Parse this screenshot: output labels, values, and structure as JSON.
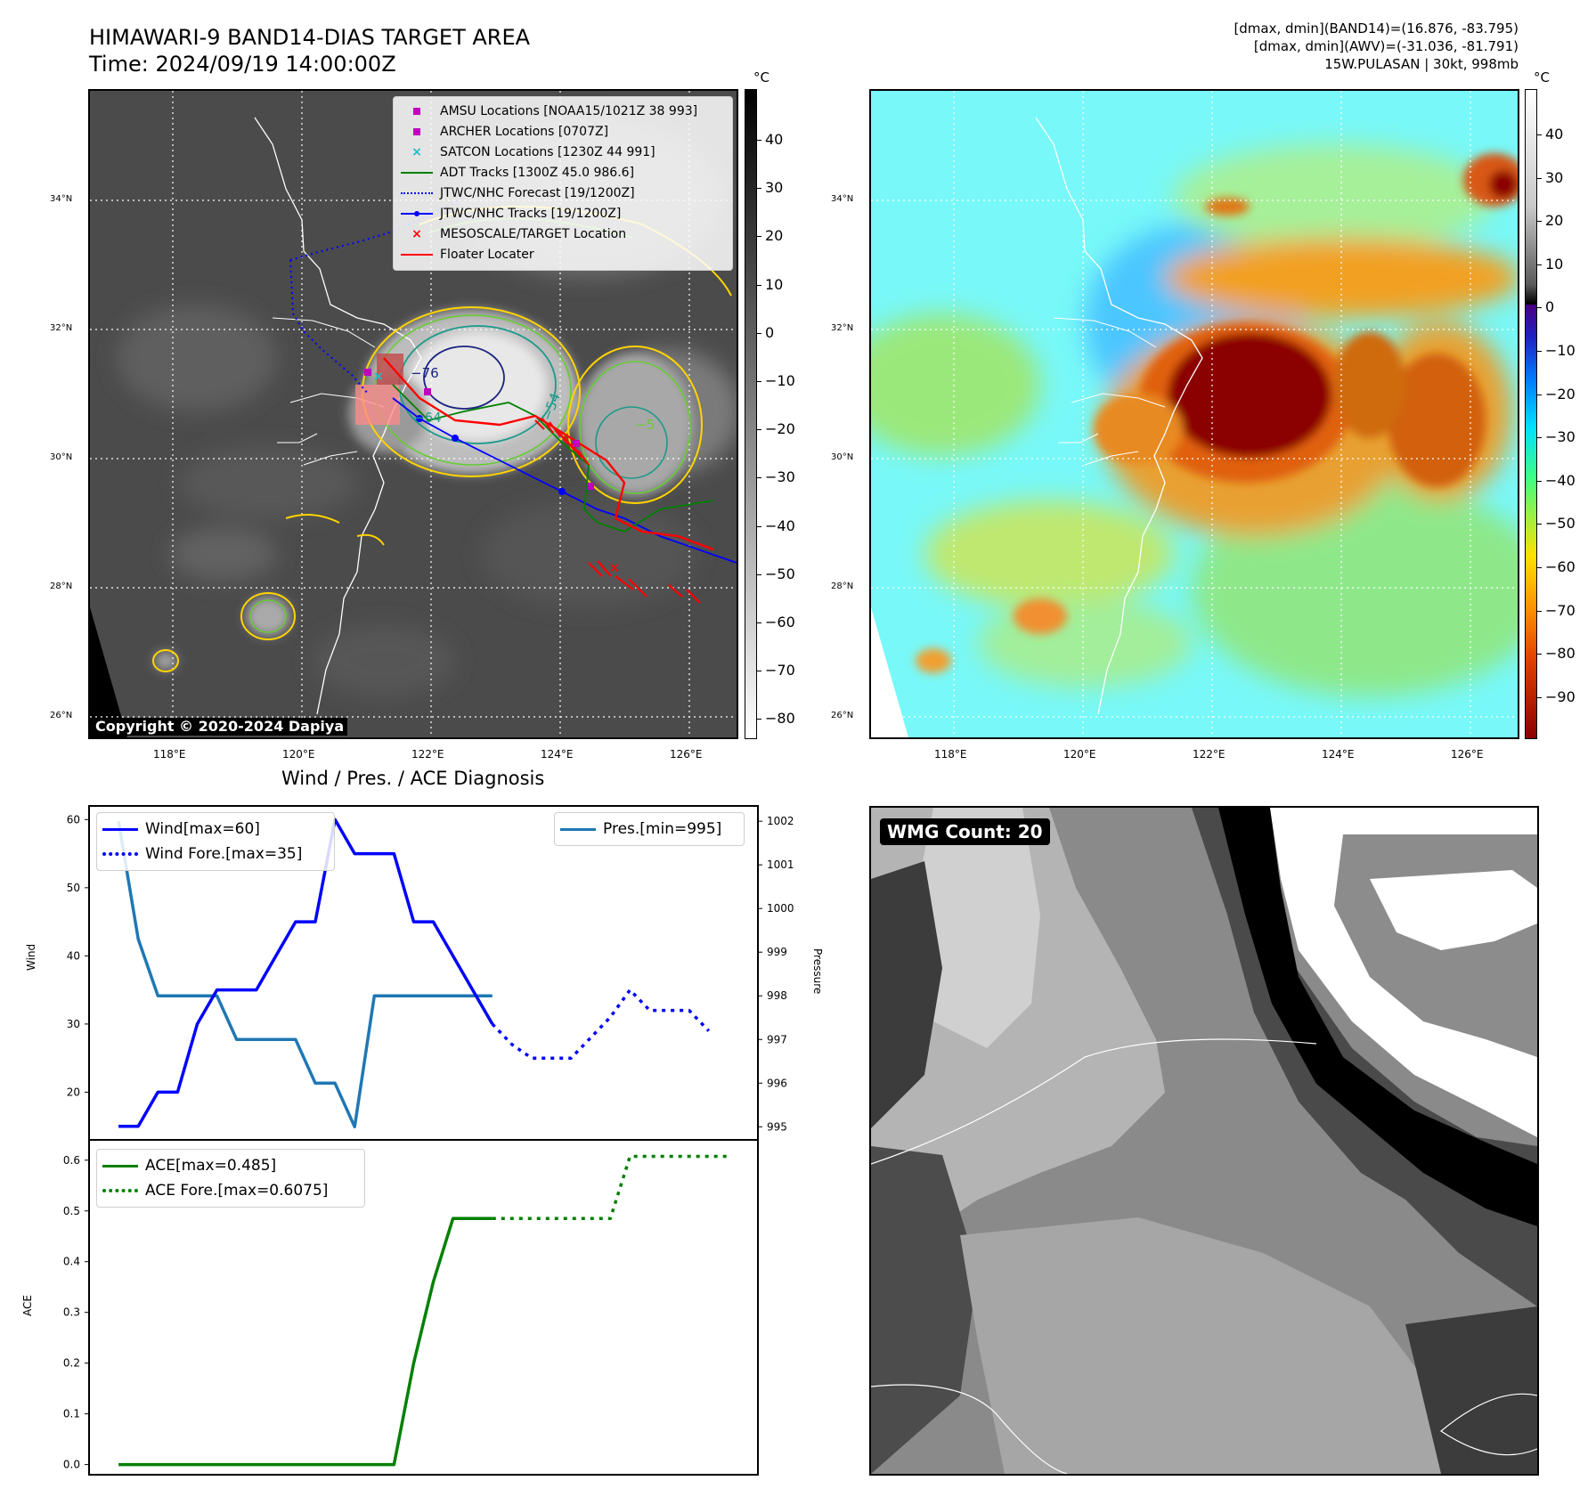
{
  "header": {
    "title_line1": "HIMAWARI-9 BAND14-DIAS TARGET AREA",
    "title_line2": "Time: 2024/09/19 14:00:00Z",
    "info_line1": "[dmax, dmin](BAND14)=(16.876, -83.795)",
    "info_line2": "[dmax, dmin](AWV)=(-31.036, -81.791)",
    "info_line3": "15W.PULASAN | 30kt, 998mb"
  },
  "map": {
    "lon_ticks": [
      "118°E",
      "120°E",
      "122°E",
      "124°E",
      "126°E"
    ],
    "lat_ticks": [
      "34°N",
      "32°N",
      "30°N",
      "28°N",
      "26°N"
    ],
    "colorbar_unit": "°C",
    "gray_cbar_ticks": [
      "40",
      "30",
      "20",
      "10",
      "0",
      "−10",
      "−20",
      "−30",
      "−40",
      "−50",
      "−60",
      "−70",
      "−80"
    ],
    "color_cbar_ticks": [
      "40",
      "30",
      "20",
      "10",
      "0",
      "−10",
      "−20",
      "−30",
      "−40",
      "−50",
      "−60",
      "−70",
      "−80",
      "−90"
    ],
    "copyright": "Copyright © 2020-2024 Dapiya",
    "contour_labels": [
      "−64",
      "−54",
      "−76",
      "−5"
    ],
    "legend": [
      {
        "label": "AMSU Locations [NOAA15/1021Z 38 993]",
        "marker": "square",
        "color": "#bf00bf"
      },
      {
        "label": "ARCHER Locations [0707Z]",
        "marker": "square",
        "color": "#bf00bf"
      },
      {
        "label": "SATCON Locations [1230Z 44 991]",
        "marker": "x",
        "color": "#17becf"
      },
      {
        "label": "ADT Tracks [1300Z 45.0 986.6]",
        "marker": "line",
        "color": "#008000"
      },
      {
        "label": "JTWC/NHC Forecast [19/1200Z]",
        "marker": "dotted",
        "color": "#0000ff"
      },
      {
        "label": "JTWC/NHC Tracks [19/1200Z]",
        "marker": "line-dot",
        "color": "#0000ff"
      },
      {
        "label": "MESOSCALE/TARGET Location",
        "marker": "x",
        "color": "#ff0000"
      },
      {
        "label": "Floater Locater",
        "marker": "line",
        "color": "#ff0000"
      }
    ]
  },
  "diagnosis": {
    "title": "Wind / Pres. / ACE Diagnosis",
    "wind_axis_label": "Wind",
    "pressure_axis_label": "Pressure",
    "ace_axis_label": "ACE",
    "legend_wind": "Wind[max=60]",
    "legend_wind_fore": "Wind Fore.[max=35]",
    "legend_pres": "Pres.[min=995]",
    "legend_ace": "ACE[max=0.485]",
    "legend_ace_fore": "ACE Fore.[max=0.6075]",
    "colors": {
      "wind": "#0000ff",
      "pressure": "#1f77b4",
      "ace": "#008000"
    }
  },
  "wmg": {
    "label": "WMG Count: 20"
  },
  "chart_data": [
    {
      "type": "line",
      "title": "Wind / Pres. / ACE Diagnosis",
      "ylabel": "Wind",
      "ylim": [
        13,
        62
      ],
      "y2label": "Pressure",
      "y2lim": [
        994.7,
        1002.35
      ],
      "yticks": [
        20,
        30,
        40,
        50,
        60
      ],
      "y2ticks": [
        995,
        996,
        997,
        998,
        999,
        1000,
        1001,
        1002
      ],
      "x": [
        0,
        1,
        2,
        3,
        4,
        5,
        6,
        7,
        8,
        9,
        10,
        11,
        12,
        13,
        14,
        15,
        16,
        17,
        18,
        19,
        20,
        21,
        22,
        23,
        24,
        25,
        26,
        27,
        28,
        29,
        30,
        31,
        32
      ],
      "series": [
        {
          "name": "Wind[max=60]",
          "style": "solid",
          "x": [
            0,
            1,
            2,
            3,
            4,
            5,
            6,
            7,
            8,
            9,
            10,
            11,
            12,
            13,
            14,
            15,
            16,
            17,
            18,
            19,
            20
          ],
          "values": [
            15,
            15,
            20,
            20,
            30,
            35,
            35,
            35,
            40,
            45,
            45,
            60,
            55,
            55,
            55,
            45,
            45,
            40,
            35,
            30,
            null
          ]
        },
        {
          "name": "Wind Fore.[max=35]",
          "style": "dotted",
          "x": [
            19,
            20,
            21,
            22,
            23,
            24,
            25,
            26,
            27,
            28,
            29,
            30
          ],
          "values": [
            30,
            27,
            25,
            25,
            25,
            28,
            31,
            35,
            32,
            32,
            32,
            29
          ]
        },
        {
          "name": "Pres.[min=995]",
          "style": "solid",
          "x": [
            0,
            1,
            2,
            3,
            4,
            5,
            6,
            7,
            8,
            9,
            10,
            11,
            12,
            13,
            14,
            15,
            16,
            17,
            18,
            19
          ],
          "values": [
            1002,
            999.3,
            998,
            998,
            998,
            998,
            997,
            997,
            997,
            997,
            996,
            996,
            995,
            998,
            998,
            998,
            998,
            998,
            998,
            998
          ]
        }
      ]
    },
    {
      "type": "line",
      "ylabel": "ACE",
      "ylim": [
        -0.02,
        0.64
      ],
      "yticks": [
        0.0,
        0.1,
        0.2,
        0.3,
        0.4,
        0.5,
        0.6
      ],
      "series": [
        {
          "name": "ACE[max=0.485]",
          "style": "solid",
          "x": [
            0,
            1,
            2,
            3,
            4,
            5,
            6,
            7,
            8,
            9,
            10,
            11,
            12,
            13,
            14,
            15,
            16,
            17,
            18,
            19
          ],
          "values": [
            0,
            0,
            0,
            0,
            0,
            0,
            0,
            0,
            0,
            0,
            0,
            0,
            0,
            0,
            0,
            0.2,
            0.36,
            0.485,
            0.485,
            0.485
          ]
        },
        {
          "name": "ACE Fore.[max=0.6075]",
          "style": "dotted",
          "x": [
            19,
            20,
            21,
            22,
            23,
            24,
            25,
            26,
            27,
            28,
            29,
            30,
            31
          ],
          "values": [
            0.485,
            0.485,
            0.485,
            0.485,
            0.485,
            0.485,
            0.485,
            0.6075,
            0.6075,
            0.6075,
            0.6075,
            0.6075,
            0.6075
          ]
        }
      ]
    }
  ]
}
